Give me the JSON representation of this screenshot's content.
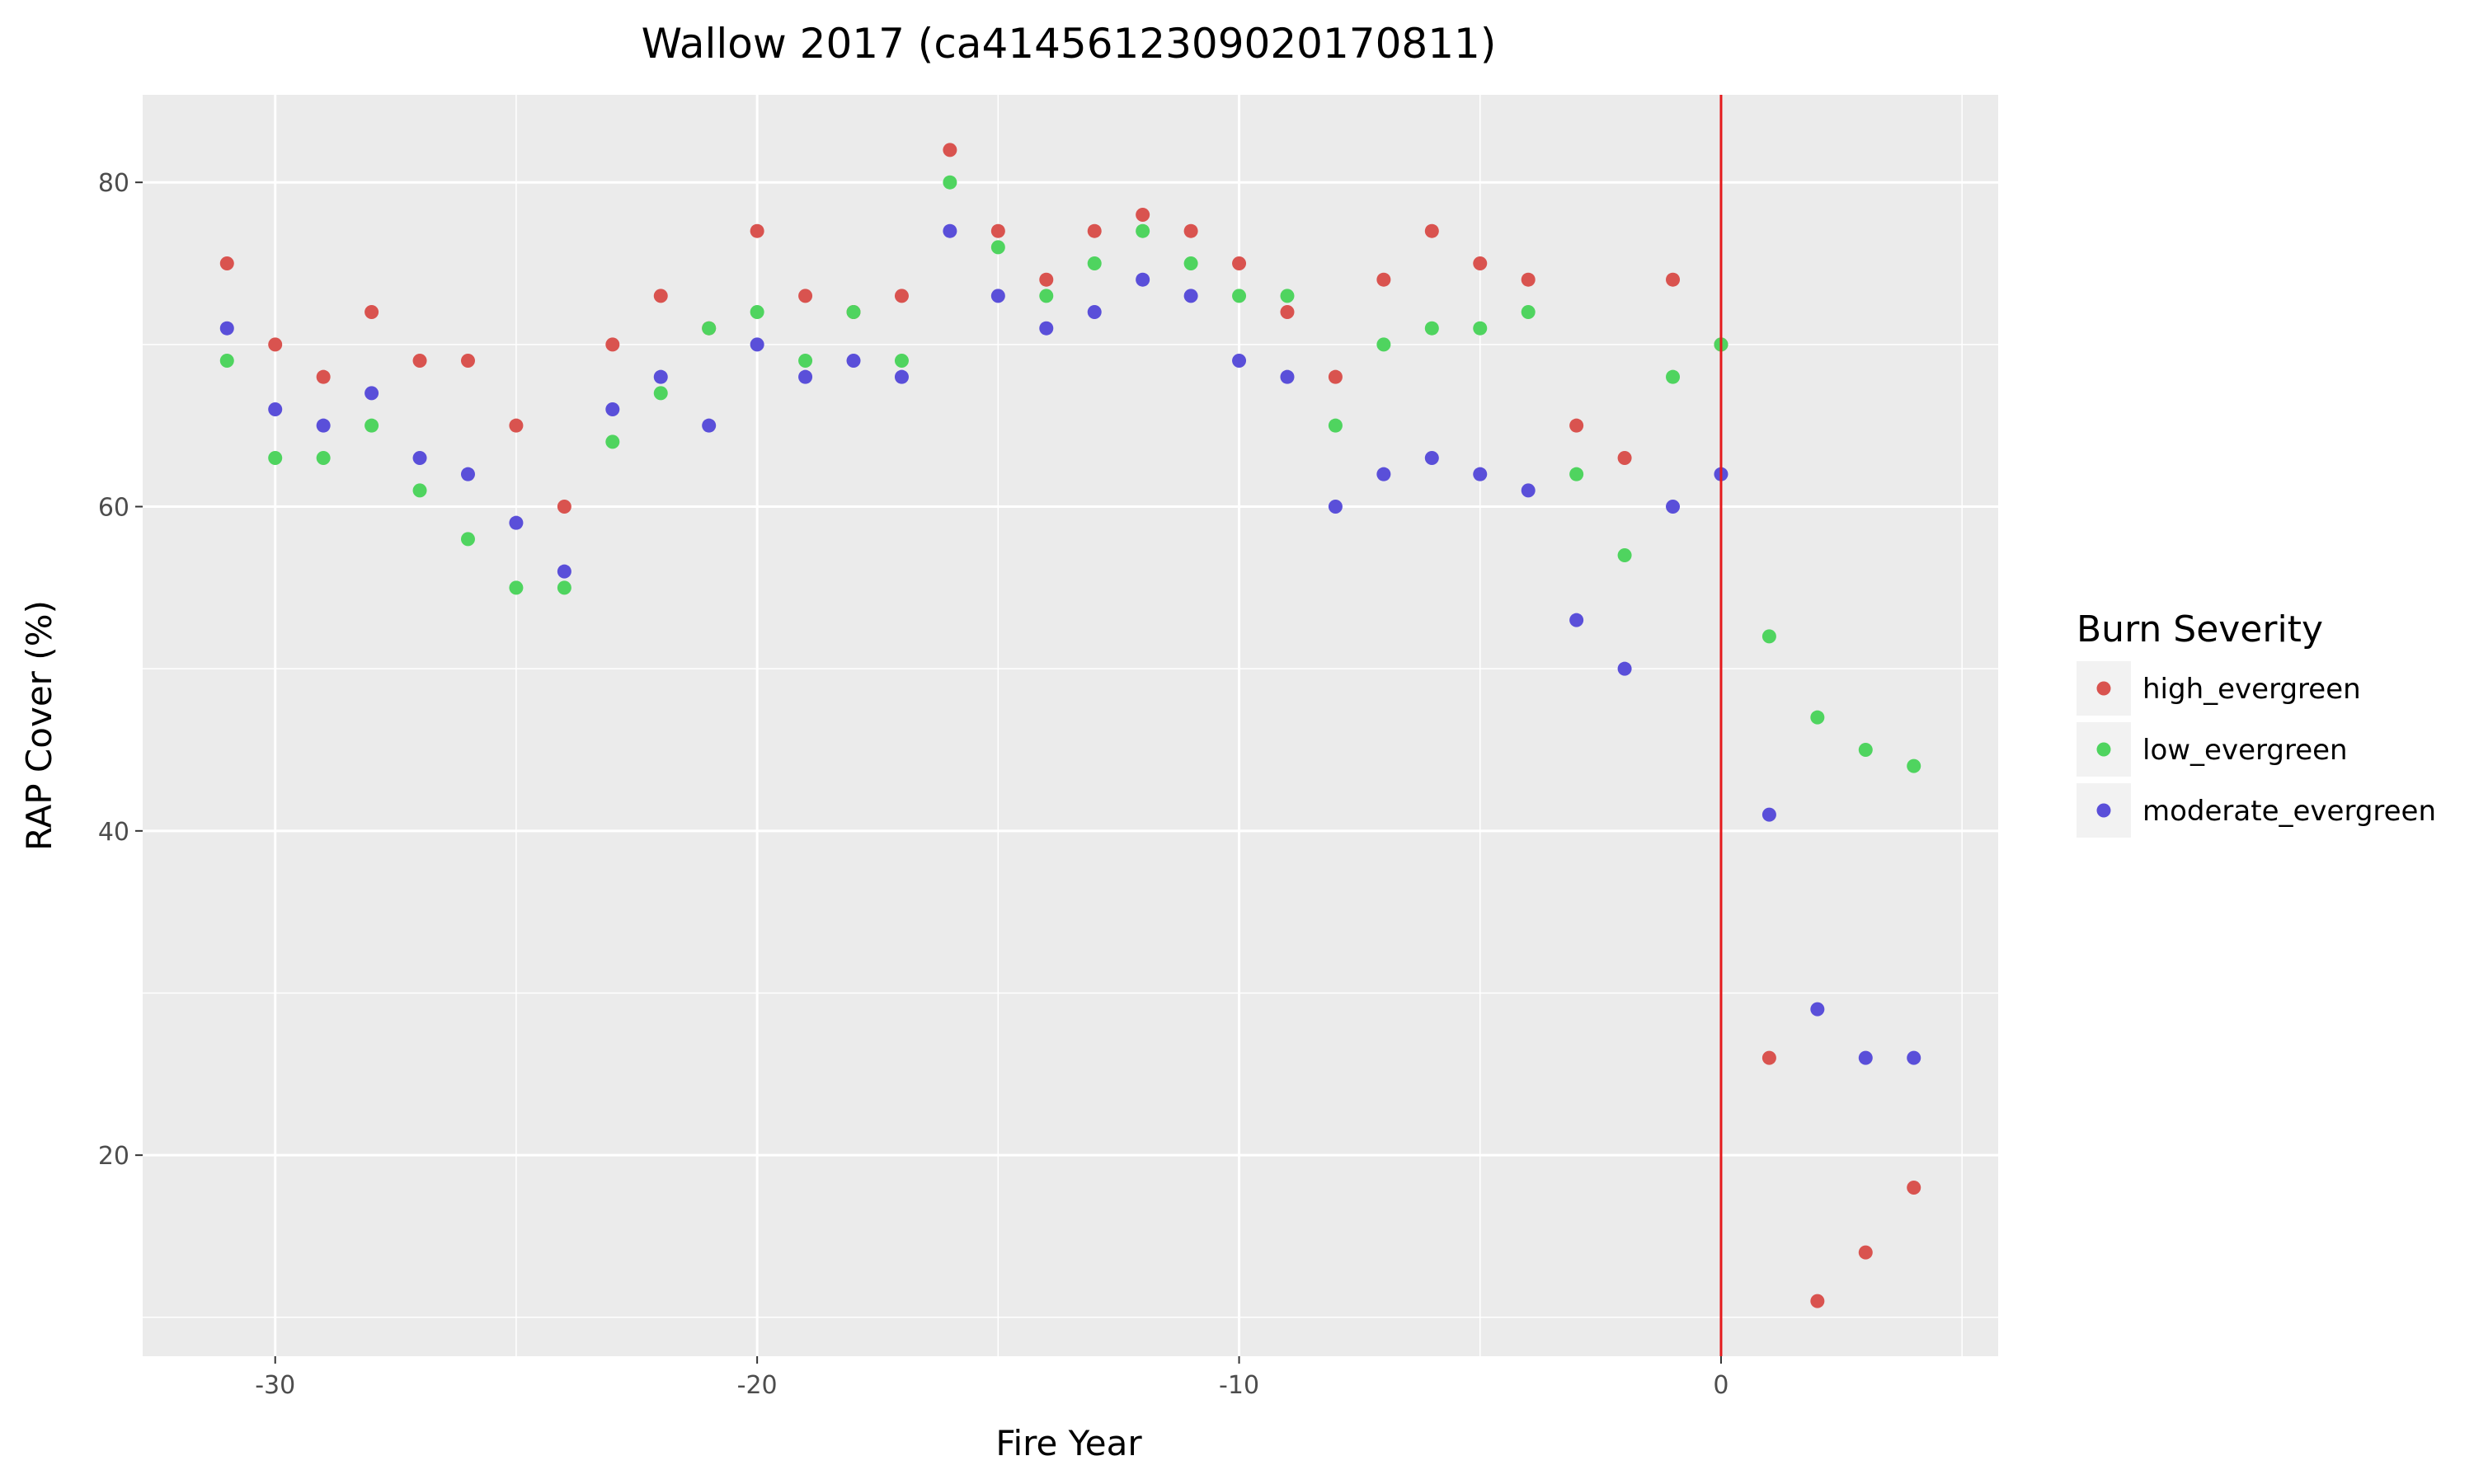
{
  "chart_data": {
    "type": "scatter",
    "title": "Wallow 2017 (ca41456123090201708​11)",
    "xlabel": "Fire Year",
    "ylabel": "RAP Cover (%)",
    "xlim": [
      -32.75,
      5.75
    ],
    "ylim": [
      7.6,
      85.4
    ],
    "x_ticks": [
      -30,
      -20,
      -10,
      0
    ],
    "x_tick_labels": [
      "-30",
      "-20",
      "-10",
      "0"
    ],
    "y_ticks": [
      20,
      40,
      60,
      80
    ],
    "y_tick_labels": [
      "20",
      "40",
      "60",
      "80"
    ],
    "x_minor": [
      -25,
      -15,
      -5,
      5
    ],
    "y_minor": [
      10,
      30,
      50,
      70
    ],
    "grid": true,
    "vline": {
      "x": 0,
      "color": "#e41a1c"
    },
    "legend": {
      "title": "Burn Severity",
      "position": "right"
    },
    "series": [
      {
        "name": "high_evergreen",
        "color": "#d9534f",
        "x": [
          -31,
          -30,
          -29,
          -28,
          -27,
          -26,
          -25,
          -24,
          -23,
          -22,
          -21,
          -20,
          -19,
          -18,
          -17,
          -16,
          -15,
          -14,
          -13,
          -12,
          -11,
          -10,
          -9,
          -8,
          -7,
          -6,
          -5,
          -4,
          -3,
          -2,
          -1,
          0,
          1,
          2,
          3,
          4
        ],
        "y": [
          75,
          70,
          68,
          72,
          69,
          69,
          65,
          60,
          70,
          73,
          71,
          77,
          73,
          72,
          73,
          82,
          77,
          74,
          77,
          78,
          77,
          75,
          72,
          68,
          74,
          77,
          75,
          74,
          65,
          63,
          74,
          70,
          26,
          11,
          14,
          18
        ]
      },
      {
        "name": "low_evergreen",
        "color": "#4fd45f",
        "x": [
          -31,
          -30,
          -29,
          -28,
          -27,
          -26,
          -25,
          -24,
          -23,
          -22,
          -21,
          -20,
          -19,
          -18,
          -17,
          -16,
          -15,
          -14,
          -13,
          -12,
          -11,
          -10,
          -9,
          -8,
          -7,
          -6,
          -5,
          -4,
          -3,
          -2,
          -1,
          0,
          1,
          2,
          3,
          4
        ],
        "y": [
          69,
          63,
          63,
          65,
          61,
          58,
          55,
          55,
          64,
          67,
          71,
          72,
          69,
          72,
          69,
          80,
          76,
          73,
          75,
          77,
          75,
          73,
          73,
          65,
          70,
          71,
          71,
          72,
          62,
          57,
          68,
          70,
          52,
          47,
          45,
          44
        ]
      },
      {
        "name": "moderate_evergreen",
        "color": "#5a4fd9",
        "x": [
          -31,
          -30,
          -29,
          -28,
          -27,
          -26,
          -25,
          -24,
          -23,
          -22,
          -21,
          -20,
          -19,
          -18,
          -17,
          -16,
          -15,
          -14,
          -13,
          -12,
          -11,
          -10,
          -9,
          -8,
          -7,
          -6,
          -5,
          -4,
          -3,
          -2,
          -1,
          0,
          1,
          2,
          3,
          4
        ],
        "y": [
          71,
          66,
          65,
          67,
          63,
          62,
          59,
          56,
          66,
          68,
          65,
          70,
          68,
          69,
          68,
          77,
          73,
          71,
          72,
          74,
          73,
          69,
          68,
          60,
          62,
          63,
          62,
          61,
          53,
          50,
          60,
          62,
          41,
          29,
          26,
          26
        ]
      }
    ]
  }
}
